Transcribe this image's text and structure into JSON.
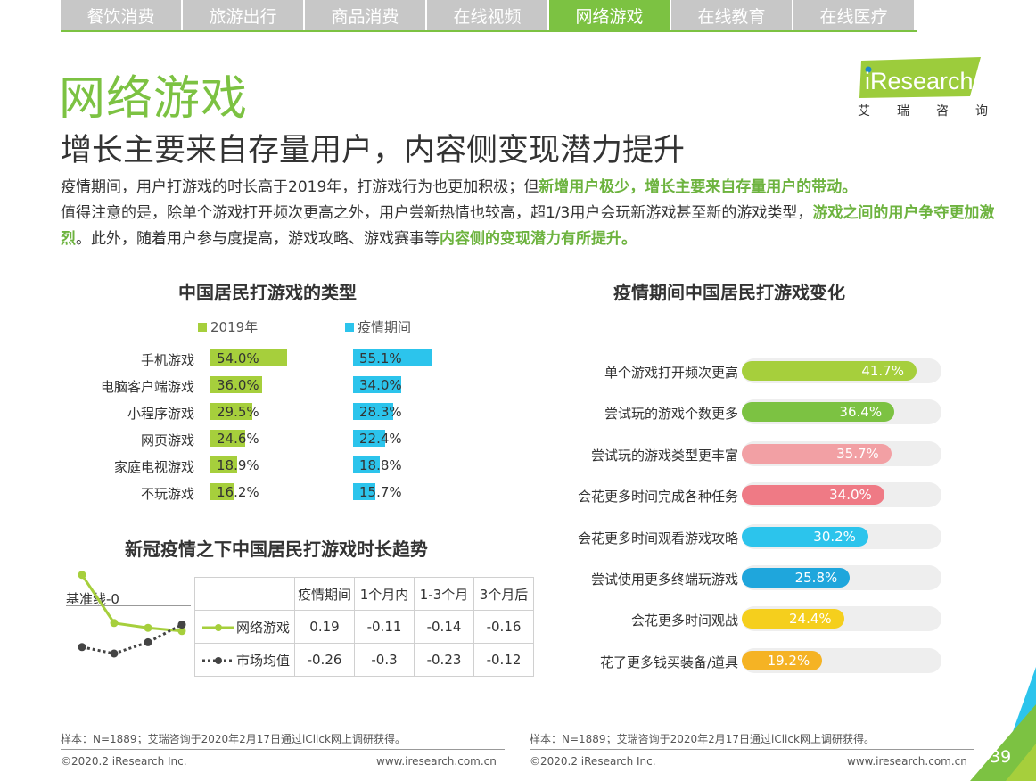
{
  "tabs": [
    {
      "label": "餐饮消费",
      "active": false
    },
    {
      "label": "旅游出行",
      "active": false
    },
    {
      "label": "商品消费",
      "active": false
    },
    {
      "label": "在线视频",
      "active": false
    },
    {
      "label": "网络游戏",
      "active": true
    },
    {
      "label": "在线教育",
      "active": false
    },
    {
      "label": "在线医疗",
      "active": false
    }
  ],
  "header": {
    "title": "网络游戏",
    "subtitle": "增长主要来自存量用户，内容侧变现潜力提升",
    "logo_text": "iResearch",
    "logo_cn": [
      "艾",
      "瑞",
      "咨",
      "询"
    ]
  },
  "intro": [
    {
      "text": "疫情期间，用户打游戏的时长高于2019年，打游戏行为也更加积极；但",
      "bold": false
    },
    {
      "text": "新增用户极少，增长主要来自存量用户的带动。",
      "bold": true
    },
    {
      "text": "值得注意的是，除单个游戏打开频次更高之外，用户尝新热情也较高，超1/3用户会玩新游戏甚至新的游戏类型，",
      "bold": false
    },
    {
      "text": "游戏之间的用户争夺更加激烈",
      "bold": true
    },
    {
      "text": "。此外，随着用户参与度提高，游戏攻略、游戏赛事等",
      "bold": false
    },
    {
      "text": "内容侧的变现潜力有所提升。",
      "bold": true
    }
  ],
  "colors": {
    "accent": "#7cc242",
    "series_2019": "#a6cf3c",
    "series_epidemic": "#2cc4ec"
  },
  "chart_data": [
    {
      "type": "bar",
      "title": "中国居民打游戏的类型",
      "categories": [
        "手机游戏",
        "电脑客户端游戏",
        "小程序游戏",
        "网页游戏",
        "家庭电视游戏",
        "不玩游戏"
      ],
      "series": [
        {
          "name": "2019年",
          "values": [
            54.0,
            36.0,
            29.5,
            24.6,
            18.9,
            16.2
          ],
          "color": "#a6cf3c"
        },
        {
          "name": "疫情期间",
          "values": [
            55.1,
            34.0,
            28.3,
            22.4,
            18.8,
            15.7
          ],
          "color": "#2cc4ec"
        }
      ],
      "unit": "%",
      "legend": "top"
    },
    {
      "type": "bar",
      "title": "疫情期间中国居民打游戏变化",
      "categories": [
        "单个游戏打开频次更高",
        "尝试玩的游戏个数更多",
        "尝试玩的游戏类型更丰富",
        "会花更多时间完成各种任务",
        "会花更多时间观看游戏攻略",
        "尝试使用更多终端玩游戏",
        "会花更多时间观战",
        "花了更多钱买装备/道具"
      ],
      "values": [
        41.7,
        36.4,
        35.7,
        34.0,
        30.2,
        25.8,
        24.4,
        19.2
      ],
      "colors": [
        "#a6cf3c",
        "#7cc242",
        "#f2a0a4",
        "#ef7a85",
        "#2cc4ec",
        "#1fa6dc",
        "#f5cf1d",
        "#f5b324"
      ],
      "unit": "%"
    },
    {
      "type": "line",
      "title": "新冠疫情之下中国居民打游戏时长趋势",
      "baseline_label": "基准线-0",
      "categories": [
        "疫情期间",
        "1个月内",
        "1-3个月",
        "3个月后"
      ],
      "series": [
        {
          "name": "网络游戏",
          "values": [
            0.19,
            -0.11,
            -0.14,
            -0.16
          ],
          "color": "#a6cf3c",
          "style": "solid"
        },
        {
          "name": "市场均值",
          "values": [
            -0.26,
            -0.3,
            -0.23,
            -0.12
          ],
          "color": "#444444",
          "style": "dotted"
        }
      ]
    }
  ],
  "footer": {
    "left": {
      "sample": "样本：N=1889；艾瑞咨询于2020年2月17日通过iClick网上调研获得。",
      "copyright": "©2020.2 iResearch Inc.",
      "url": "www.iresearch.com.cn"
    },
    "right": {
      "sample": "样本：N=1889；艾瑞咨询于2020年2月17日通过iClick网上调研获得。",
      "copyright": "©2020.2 iResearch Inc.",
      "url": "www.iresearch.com.cn"
    },
    "page_number": "39"
  }
}
